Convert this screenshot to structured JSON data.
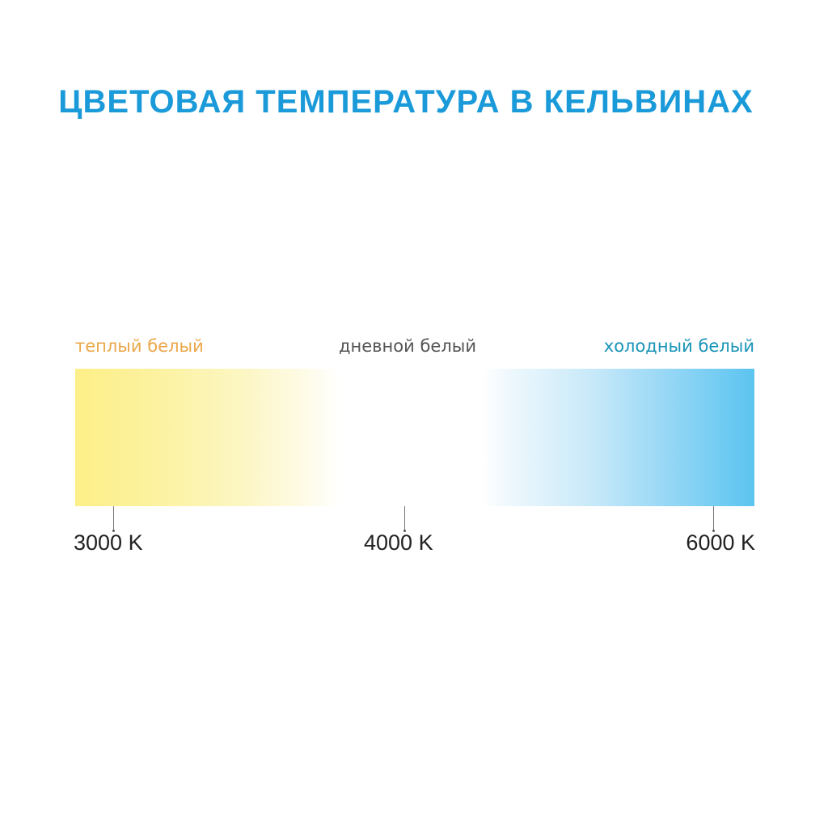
{
  "title": "ЦВЕТОВАЯ ТЕМПЕРАТУРА В КЕЛЬВИНАХ",
  "labels": {
    "warm": "теплый белый",
    "day": "дневной белый",
    "cold": "холодный белый"
  },
  "ticks": [
    "3000 K",
    "4000 K",
    "6000 K"
  ],
  "colors": {
    "title": "#1a9ad9",
    "warm_label": "#eba84a",
    "day_label": "#555555",
    "cold_label": "#1a95b8",
    "warm_end": "#fdef88",
    "cold_end": "#5bc4f0"
  }
}
